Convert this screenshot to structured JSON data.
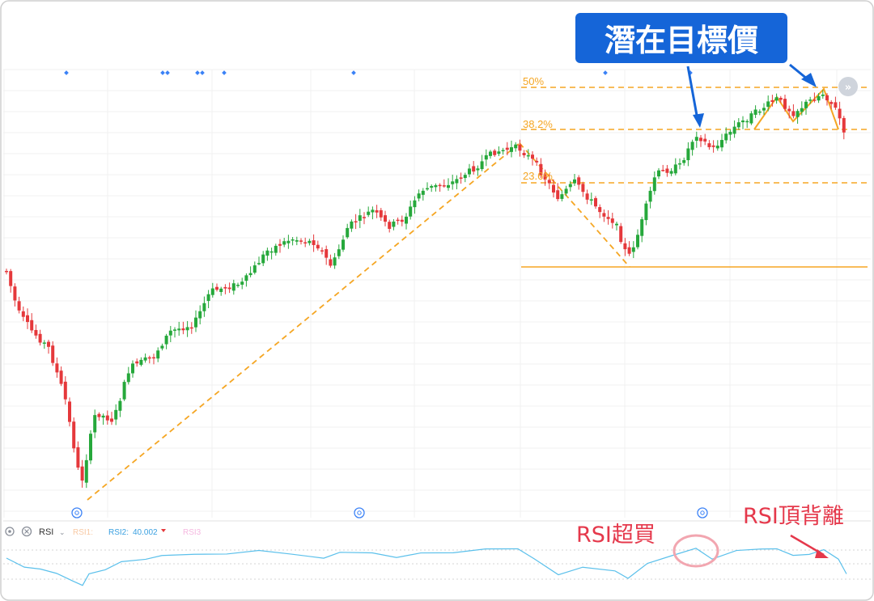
{
  "callouts": {
    "target_label": "潛在目標價",
    "rsi_overbought_label": "RSI超買",
    "rsi_top_divergence_label": "RSI頂背離"
  },
  "rsi_toolbar": {
    "indicator": "RSI",
    "rsi1_label": "RSI1:",
    "rsi2_label": "RSI2:",
    "rsi2_value": "40.002",
    "rsi3_label": "RSI3"
  },
  "colors": {
    "up": "#26a83b",
    "down": "#e5383b",
    "fib": "#f5a623",
    "rsi": "#5bc0eb",
    "callout_bg": "#1565d8",
    "callout_text": "#ffffff",
    "annotation_red": "#e5384b",
    "marker_blue": "#3b82f6"
  },
  "chart_data": [
    {
      "type": "candlestick",
      "fib_levels": [
        {
          "label": "50%",
          "value": 0.5
        },
        {
          "label": "38.2%",
          "value": 0.382
        },
        {
          "label": "23.6%",
          "value": 0.236
        }
      ],
      "markers": {
        "top_diamond_count": 10,
        "bottom_event_icon_count": 3
      }
    },
    {
      "type": "line",
      "series": [
        {
          "name": "RSI2",
          "last_value": 40.002
        }
      ]
    }
  ]
}
